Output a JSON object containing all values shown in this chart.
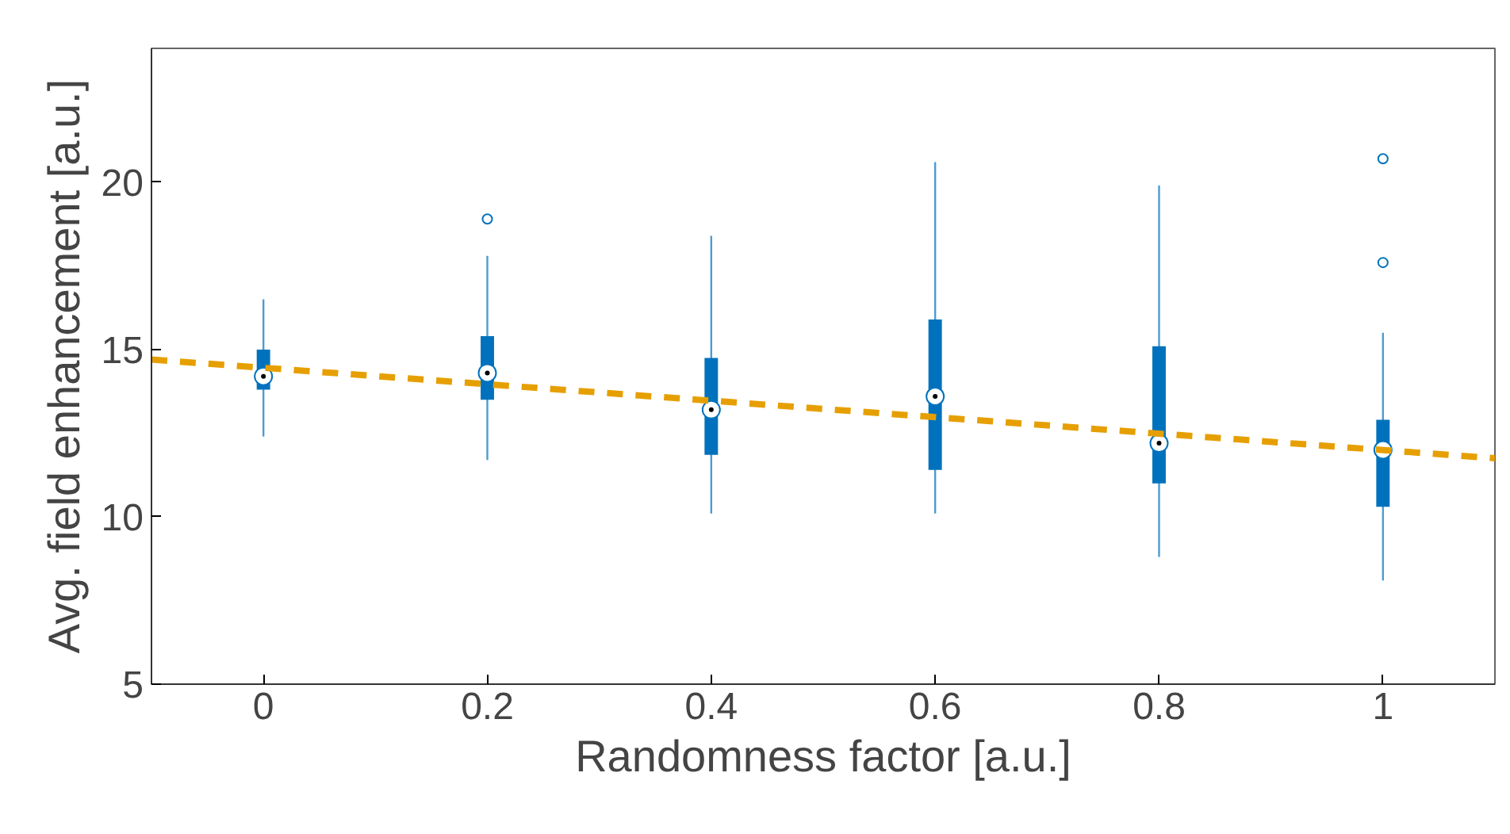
{
  "chart_data": {
    "type": "box",
    "xlabel": "Randomness factor [a.u.]",
    "ylabel": "Avg. field enhancement [a.u.]",
    "x": [
      0,
      0.2,
      0.4,
      0.6,
      0.8,
      1
    ],
    "xlim": [
      -0.1,
      1.1
    ],
    "xticks": [
      0,
      0.2,
      0.4,
      0.6,
      0.8,
      1
    ],
    "ylim": [
      5,
      24
    ],
    "yticks": [
      5,
      10,
      15,
      20
    ],
    "grid": false,
    "series": [
      {
        "color": "#0072bd",
        "boxes": [
          {
            "low": 12.4,
            "q1": 13.8,
            "median": 14.2,
            "q3": 15.0,
            "high": 16.5
          },
          {
            "low": 11.7,
            "q1": 13.5,
            "median": 14.3,
            "q3": 15.4,
            "high": 17.8,
            "outliers": [
              18.9
            ]
          },
          {
            "low": 10.1,
            "q1": 11.85,
            "median": 13.2,
            "q3": 14.75,
            "high": 18.4
          },
          {
            "low": 10.1,
            "q1": 11.4,
            "median": 13.6,
            "q3": 15.9,
            "high": 20.6
          },
          {
            "low": 8.8,
            "q1": 11.0,
            "median": 12.2,
            "q3": 15.1,
            "high": 19.9
          },
          {
            "low": 8.1,
            "q1": 10.3,
            "median": 12.0,
            "q3": 12.9,
            "high": 15.5,
            "outliers": [
              20.7,
              17.6
            ]
          }
        ]
      },
      {
        "type": "line",
        "color": "#e69f00",
        "line_style": "dashed",
        "x": [
          -0.1,
          1.1
        ],
        "values": [
          14.7,
          11.75
        ]
      }
    ]
  }
}
